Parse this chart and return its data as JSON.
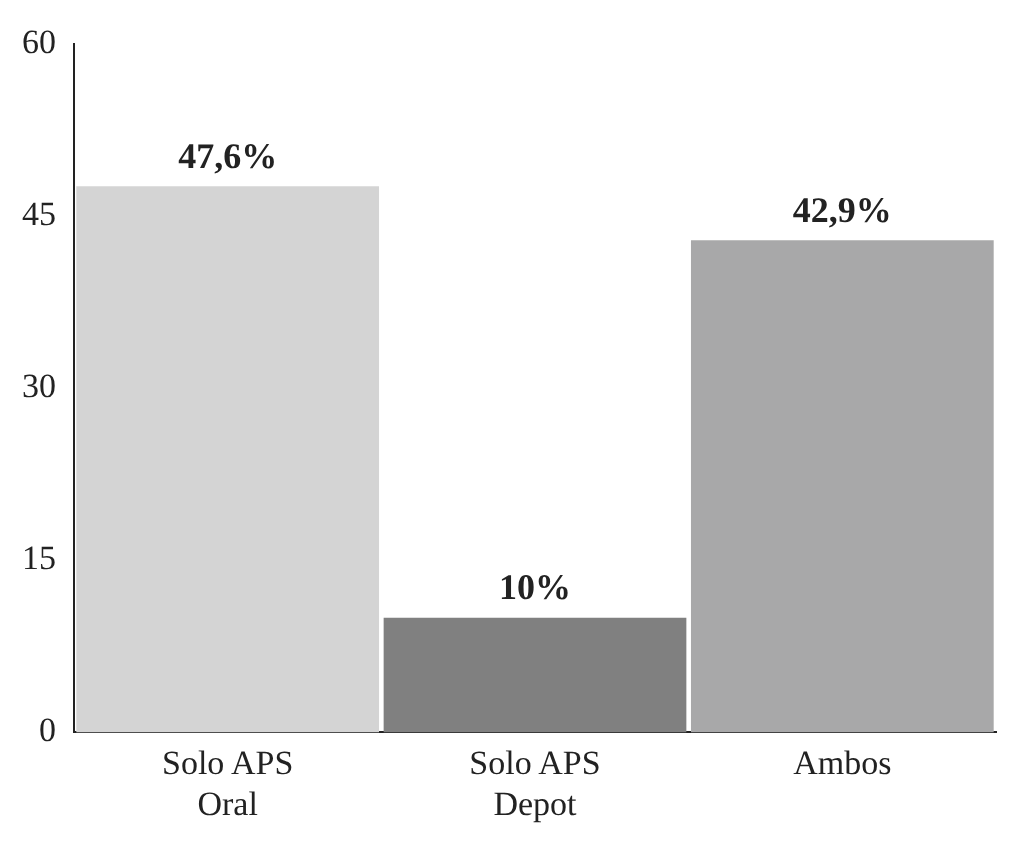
{
  "chart_data": {
    "type": "bar",
    "categories": [
      "Solo APS\nOral",
      "Solo APS\nDepot",
      "Ambos"
    ],
    "values": [
      47.6,
      10,
      42.9
    ],
    "colors": [
      "#d4d4d4",
      "#808080",
      "#a8a8a9"
    ],
    "value_labels": [
      "47,6%",
      "10%",
      "42,9%"
    ],
    "ylim": [
      0,
      60
    ],
    "yticks": [
      0,
      15,
      30,
      45,
      60
    ],
    "grid": false,
    "legend": false
  }
}
